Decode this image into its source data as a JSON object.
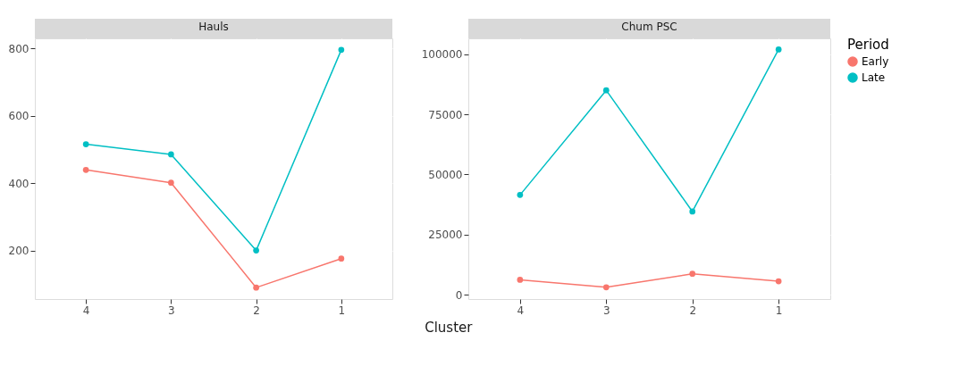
{
  "chart_data": [
    {
      "type": "line",
      "title": "Hauls",
      "xlabel": "Cluster",
      "categories": [
        "4",
        "3",
        "2",
        "1"
      ],
      "ylim": [
        57,
        830
      ],
      "yticks": [
        200,
        400,
        600,
        800
      ],
      "grid": true,
      "marker": "circle",
      "legend": "right",
      "series": [
        {
          "name": "Early",
          "color": "#f8766d",
          "values": [
            440,
            402,
            91,
            177
          ]
        },
        {
          "name": "Late",
          "color": "#00bfc4",
          "values": [
            516,
            486,
            201,
            796
          ]
        }
      ]
    },
    {
      "type": "line",
      "title": "Chum PSC",
      "categories": [
        "4",
        "3",
        "2",
        "1"
      ],
      "ylim": [
        -1800,
        106600
      ],
      "yticks": [
        0,
        25000,
        50000,
        75000,
        100000
      ],
      "grid": true,
      "marker": "circle",
      "legend": "right",
      "legend_title": "Period",
      "series": [
        {
          "name": "Early",
          "color": "#f8766d",
          "values": [
            6200,
            3100,
            8700,
            5600
          ]
        },
        {
          "name": "Late",
          "color": "#00bfc4",
          "values": [
            41500,
            85000,
            34600,
            102000
          ]
        }
      ]
    }
  ]
}
